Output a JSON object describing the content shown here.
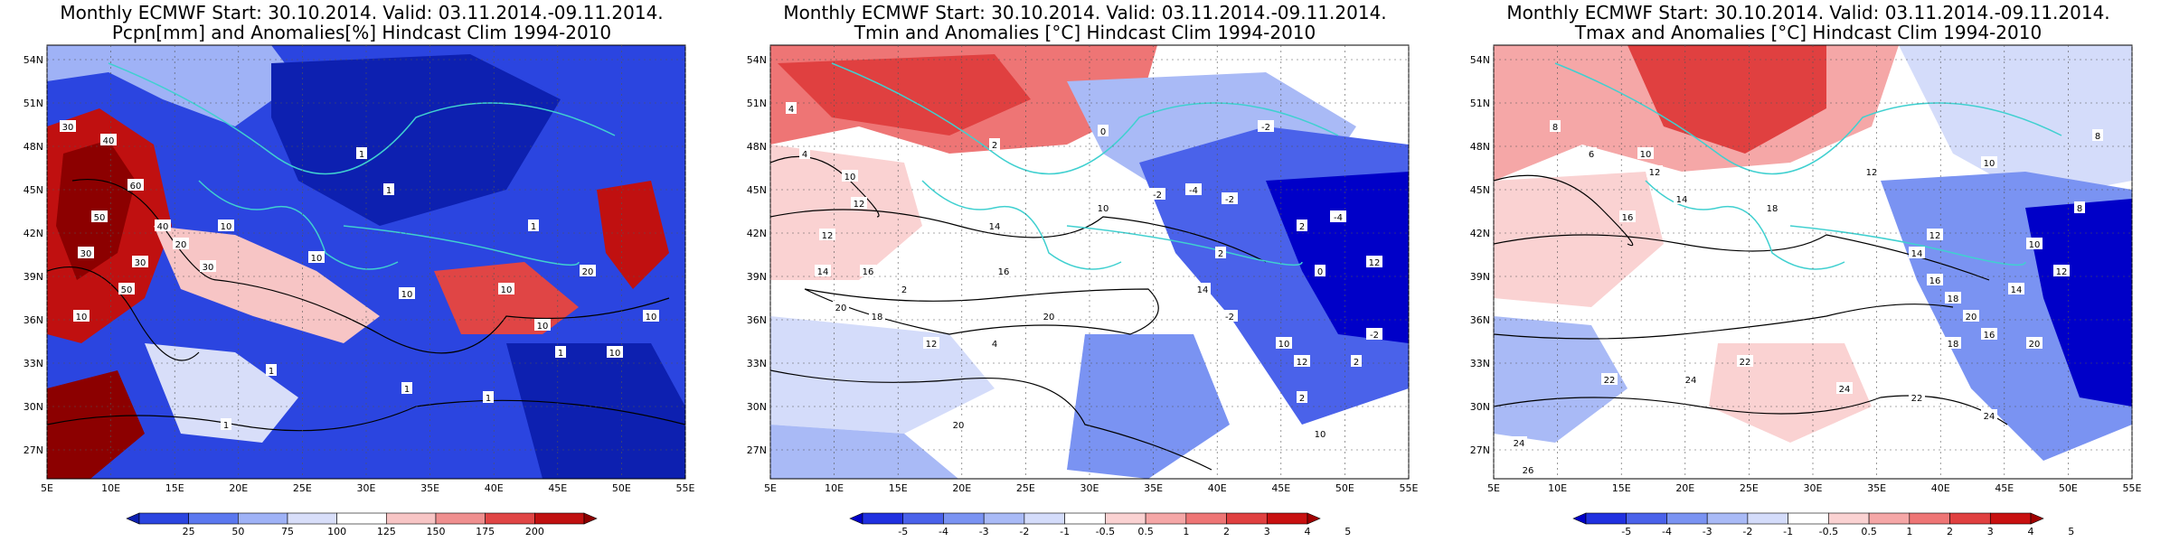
{
  "chart_data": [
    {
      "type": "heatmap",
      "title_line1": "Monthly ECMWF Start: 30.10.2014. Valid: 03.11.2014.-09.11.2014.",
      "title_line2": "Pcpn[mm] and Anomalies[%] Hindcast Clim 1994-2010",
      "x_ticks": [
        "5E",
        "10E",
        "15E",
        "20E",
        "25E",
        "30E",
        "35E",
        "40E",
        "45E",
        "50E",
        "55E"
      ],
      "y_ticks": [
        "27N",
        "30N",
        "33N",
        "36N",
        "39N",
        "42N",
        "45N",
        "48N",
        "51N",
        "54N"
      ],
      "xlim": [
        5,
        55
      ],
      "ylim": [
        25,
        55
      ],
      "colorbar_ticks": [
        "25",
        "50",
        "75",
        "100",
        "125",
        "150",
        "175",
        "200"
      ],
      "colorbar_colors": [
        "#0d20b0",
        "#2b45e0",
        "#5b78ef",
        "#9fb2f6",
        "#d8def9",
        "#ffffff",
        "#f7c5c5",
        "#ef8f8f",
        "#e04545",
        "#c01010",
        "#8c0000"
      ],
      "contour_labels": [
        "30",
        "40",
        "60",
        "40",
        "30",
        "10",
        "50",
        "30",
        "50",
        "20",
        "30",
        "10",
        "10",
        "10",
        "10",
        "1",
        "1",
        "1",
        "1",
        "1",
        "1",
        "1",
        "10",
        "10",
        "20",
        "10",
        "1"
      ]
    },
    {
      "type": "heatmap",
      "title_line1": "Monthly ECMWF Start: 30.10.2014. Valid: 03.11.2014.-09.11.2014.",
      "title_line2": "Tmin and Anomalies [°C] Hindcast Clim 1994-2010",
      "x_ticks": [
        "5E",
        "10E",
        "15E",
        "20E",
        "25E",
        "30E",
        "35E",
        "40E",
        "45E",
        "50E",
        "55E"
      ],
      "y_ticks": [
        "27N",
        "30N",
        "33N",
        "36N",
        "39N",
        "42N",
        "45N",
        "48N",
        "51N",
        "54N"
      ],
      "xlim": [
        5,
        55
      ],
      "ylim": [
        25,
        55
      ],
      "colorbar_ticks": [
        "-5",
        "-4",
        "-3",
        "-2",
        "-1",
        "-0.5",
        "0.5",
        "1",
        "2",
        "3",
        "4",
        "5"
      ],
      "colorbar_colors": [
        "#0000c8",
        "#2030e0",
        "#4a62ea",
        "#7a93f2",
        "#a9baf6",
        "#d4dcfa",
        "#ffffff",
        "#fad2d2",
        "#f5a7a7",
        "#ee7575",
        "#e04040",
        "#c81010",
        "#a00000"
      ],
      "contour_labels": [
        "4",
        "4",
        "10",
        "12",
        "12",
        "14",
        "16",
        "18",
        "20",
        "20",
        "12",
        "2",
        "0",
        "-2",
        "-4",
        "2",
        "-2",
        "4",
        "10",
        "14",
        "16",
        "20",
        "-2",
        "2",
        "0",
        "12",
        "-4",
        "-2",
        "10",
        "12",
        "2",
        "14",
        "2",
        "10",
        "-2",
        "2"
      ]
    },
    {
      "type": "heatmap",
      "title_line1": "Monthly ECMWF Start: 30.10.2014. Valid: 03.11.2014.-09.11.2014.",
      "title_line2": "Tmax and Anomalies [°C] Hindcast Clim 1994-2010",
      "x_ticks": [
        "5E",
        "10E",
        "15E",
        "20E",
        "25E",
        "30E",
        "35E",
        "40E",
        "45E",
        "50E",
        "55E"
      ],
      "y_ticks": [
        "27N",
        "30N",
        "33N",
        "36N",
        "39N",
        "42N",
        "45N",
        "48N",
        "51N",
        "54N"
      ],
      "xlim": [
        5,
        55
      ],
      "ylim": [
        25,
        55
      ],
      "colorbar_ticks": [
        "-5",
        "-4",
        "-3",
        "-2",
        "-1",
        "-0.5",
        "0.5",
        "1",
        "2",
        "3",
        "4",
        "5"
      ],
      "colorbar_colors": [
        "#0000c8",
        "#2030e0",
        "#4a62ea",
        "#7a93f2",
        "#a9baf6",
        "#d4dcfa",
        "#ffffff",
        "#fad2d2",
        "#f5a7a7",
        "#ee7575",
        "#e04040",
        "#c81010",
        "#a00000"
      ],
      "contour_labels": [
        "8",
        "6",
        "10",
        "12",
        "14",
        "16",
        "18",
        "12",
        "8",
        "10",
        "12",
        "14",
        "16",
        "18",
        "20",
        "22",
        "22",
        "24",
        "24",
        "22",
        "24",
        "8",
        "10",
        "12",
        "14",
        "16",
        "18",
        "20",
        "26",
        "24"
      ]
    }
  ]
}
